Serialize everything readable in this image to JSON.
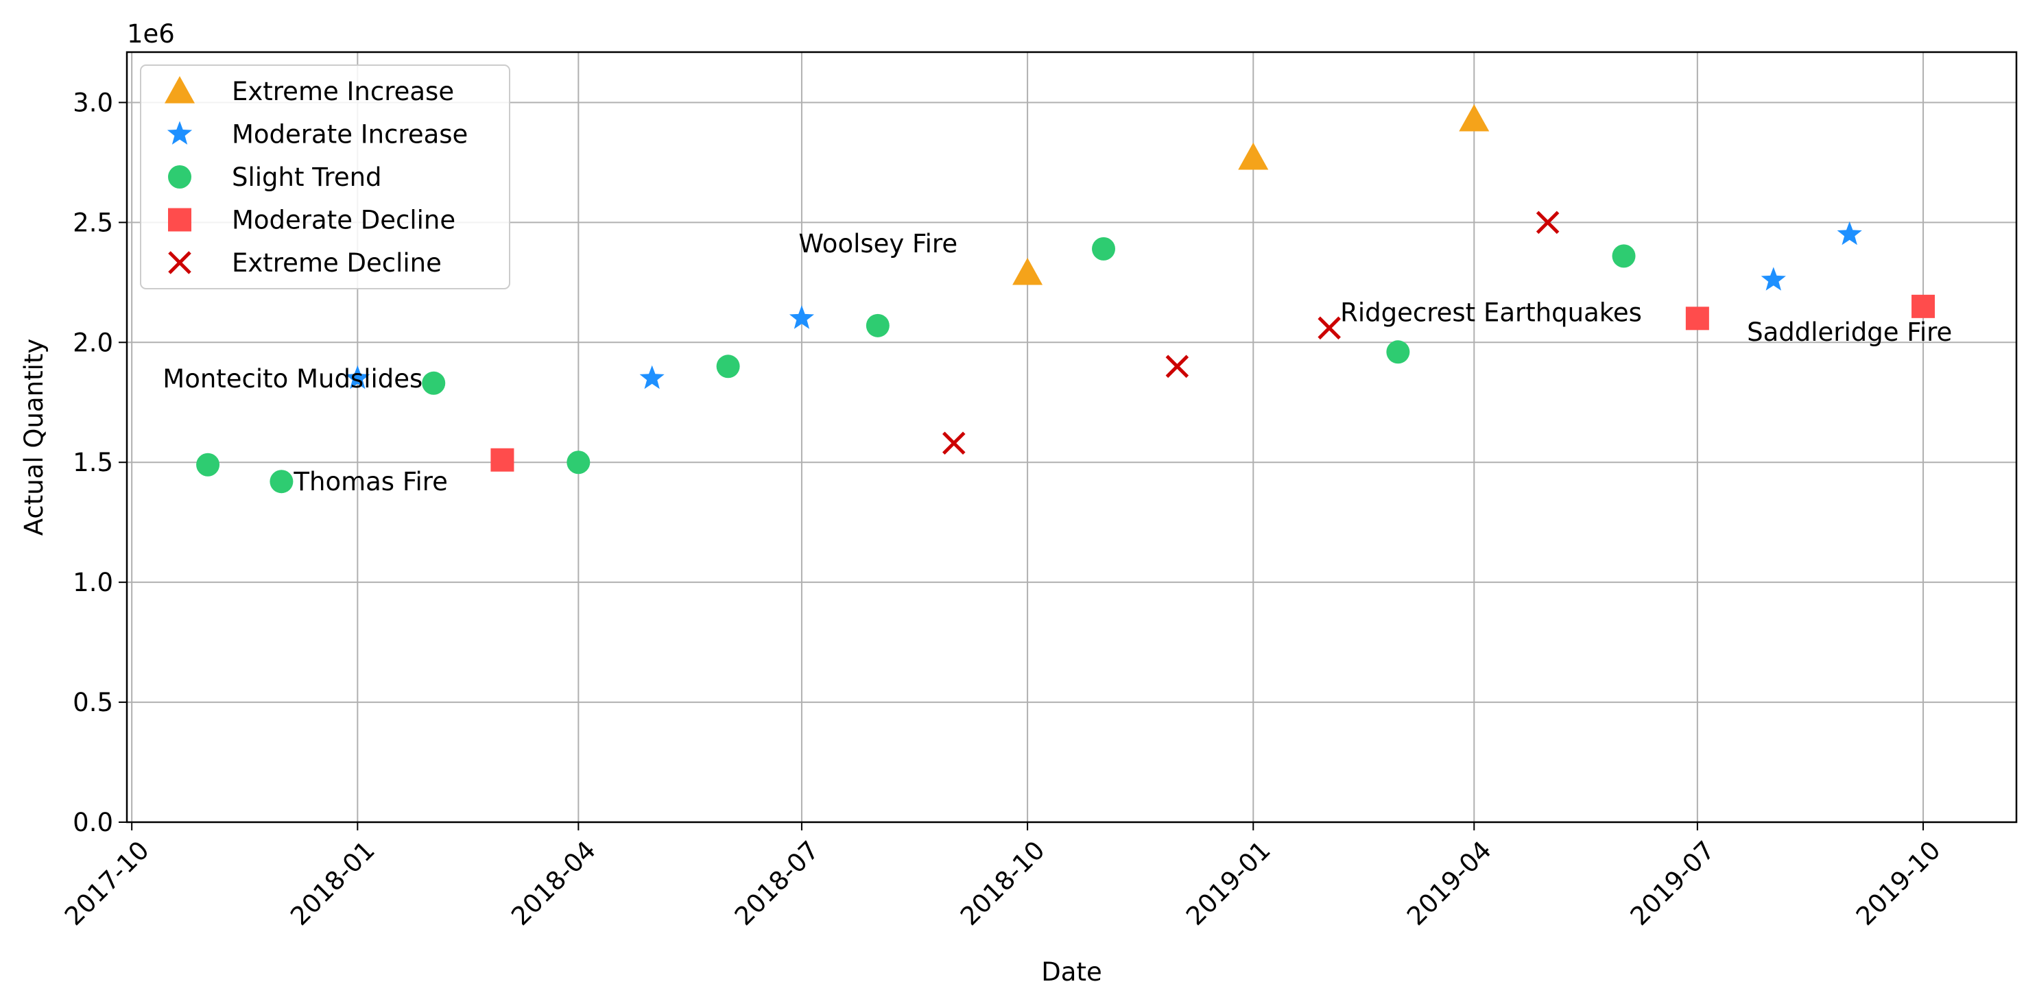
{
  "chart_data": {
    "type": "scatter",
    "title": "",
    "xlabel": "Date",
    "ylabel": "Actual Quantity",
    "y_offset_text": "1e6",
    "xlim": [
      "2017-09-29",
      "2019-11-08"
    ],
    "ylim": [
      0,
      3210000
    ],
    "grid": true,
    "legend_placement": "top-left",
    "x_ticks": [
      "2017-10",
      "2018-01",
      "2018-04",
      "2018-07",
      "2018-10",
      "2019-01",
      "2019-04",
      "2019-07",
      "2019-10"
    ],
    "x_tick_dates": [
      "2017-10-01",
      "2018-01-01",
      "2018-04-01",
      "2018-07-01",
      "2018-10-01",
      "2019-01-01",
      "2019-04-01",
      "2019-07-01",
      "2019-10-01"
    ],
    "y_ticks": [
      "0.0",
      "0.5",
      "1.0",
      "1.5",
      "2.0",
      "2.5",
      "3.0"
    ],
    "y_tick_values": [
      0,
      500000,
      1000000,
      1500000,
      2000000,
      2500000,
      3000000
    ],
    "series": [
      {
        "name": "Extreme Increase",
        "marker": "triangle",
        "color": "#f5a31a",
        "points": [
          {
            "x": "2018-10-01",
            "y": 2290000
          },
          {
            "x": "2019-01-01",
            "y": 2770000
          },
          {
            "x": "2019-04-01",
            "y": 2930000
          }
        ]
      },
      {
        "name": "Moderate Increase",
        "marker": "star",
        "color": "#1e90ff",
        "points": [
          {
            "x": "2018-01-01",
            "y": 1850000
          },
          {
            "x": "2018-05-01",
            "y": 1850000
          },
          {
            "x": "2018-07-01",
            "y": 2100000
          },
          {
            "x": "2019-08-01",
            "y": 2260000
          },
          {
            "x": "2019-09-01",
            "y": 2450000
          }
        ]
      },
      {
        "name": "Slight Trend",
        "marker": "circle",
        "color": "#2ecc71",
        "points": [
          {
            "x": "2017-11-01",
            "y": 1490000
          },
          {
            "x": "2017-12-01",
            "y": 1420000
          },
          {
            "x": "2018-02-01",
            "y": 1830000
          },
          {
            "x": "2018-04-01",
            "y": 1500000
          },
          {
            "x": "2018-06-01",
            "y": 1900000
          },
          {
            "x": "2018-08-01",
            "y": 2070000
          },
          {
            "x": "2018-11-01",
            "y": 2390000
          },
          {
            "x": "2019-03-01",
            "y": 1960000
          },
          {
            "x": "2019-06-01",
            "y": 2360000
          }
        ]
      },
      {
        "name": "Moderate Decline",
        "marker": "square",
        "color": "#ff4c4c",
        "points": [
          {
            "x": "2018-03-01",
            "y": 1510000
          },
          {
            "x": "2019-07-01",
            "y": 2100000
          },
          {
            "x": "2019-10-01",
            "y": 2150000
          }
        ]
      },
      {
        "name": "Extreme Decline",
        "marker": "x",
        "color": "#cc0000",
        "points": [
          {
            "x": "2018-09-01",
            "y": 1580000
          },
          {
            "x": "2018-12-01",
            "y": 1900000
          },
          {
            "x": "2019-02-01",
            "y": 2060000
          },
          {
            "x": "2019-05-01",
            "y": 2500000
          }
        ]
      }
    ],
    "annotations": [
      {
        "text": "Montecito Mudslides",
        "x": "2018-01-01",
        "y": 1850000,
        "anchor": "end"
      },
      {
        "text": "Thomas Fire",
        "x": "2017-12-01",
        "y": 1420000,
        "anchor": "start"
      },
      {
        "text": "Woolsey Fire",
        "x": "2018-10-01",
        "y": 2290000,
        "anchor": "end-above"
      },
      {
        "text": "Ridgecrest Earthquakes",
        "x": "2019-02-01",
        "y": 2060000,
        "anchor": "start-above"
      },
      {
        "text": "Saddleridge Fire",
        "x": "2019-09-01",
        "y": 2450000,
        "anchor": "middle-below"
      }
    ]
  }
}
